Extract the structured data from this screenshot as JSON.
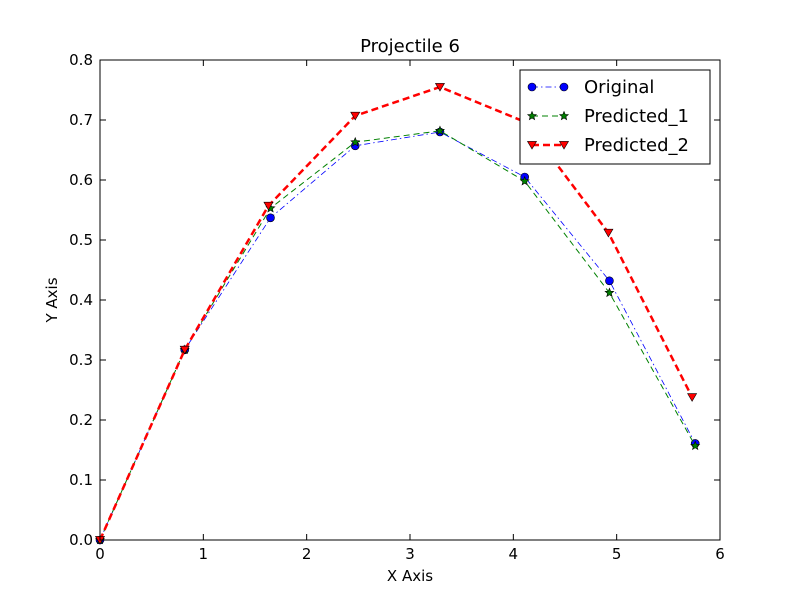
{
  "chart_data": {
    "type": "line",
    "title": "Projectile 6",
    "xlabel": "X Axis",
    "ylabel": "Y Axis",
    "xlim": [
      0,
      6
    ],
    "ylim": [
      0,
      0.8
    ],
    "xticks": [
      "0",
      "1",
      "2",
      "3",
      "4",
      "5",
      "6"
    ],
    "yticks": [
      "0.0",
      "0.1",
      "0.2",
      "0.3",
      "0.4",
      "0.5",
      "0.6",
      "0.7",
      "0.8"
    ],
    "grid": false,
    "legend_position": "top-right",
    "series": [
      {
        "name": "Original",
        "color": "#0000ff",
        "marker": "circle",
        "line_style": "dashdot",
        "x": [
          0.0,
          0.82,
          1.65,
          2.47,
          3.29,
          4.11,
          4.93,
          5.76
        ],
        "y": [
          0.0,
          0.317,
          0.537,
          0.657,
          0.68,
          0.605,
          0.432,
          0.161
        ]
      },
      {
        "name": "Predicted_1",
        "color": "#008000",
        "marker": "star",
        "line_style": "dashed",
        "x": [
          0.0,
          0.82,
          1.65,
          2.47,
          3.29,
          4.11,
          4.93,
          5.76
        ],
        "y": [
          0.0,
          0.317,
          0.553,
          0.663,
          0.682,
          0.598,
          0.412,
          0.157
        ]
      },
      {
        "name": "Predicted_2",
        "color": "#ff0000",
        "marker": "triangle-down",
        "line_style": "dashed-thick",
        "x": [
          0.0,
          0.82,
          1.63,
          2.47,
          3.29,
          4.11,
          4.92,
          5.73
        ],
        "y": [
          0.0,
          0.317,
          0.557,
          0.707,
          0.755,
          0.697,
          0.512,
          0.238
        ]
      }
    ]
  }
}
